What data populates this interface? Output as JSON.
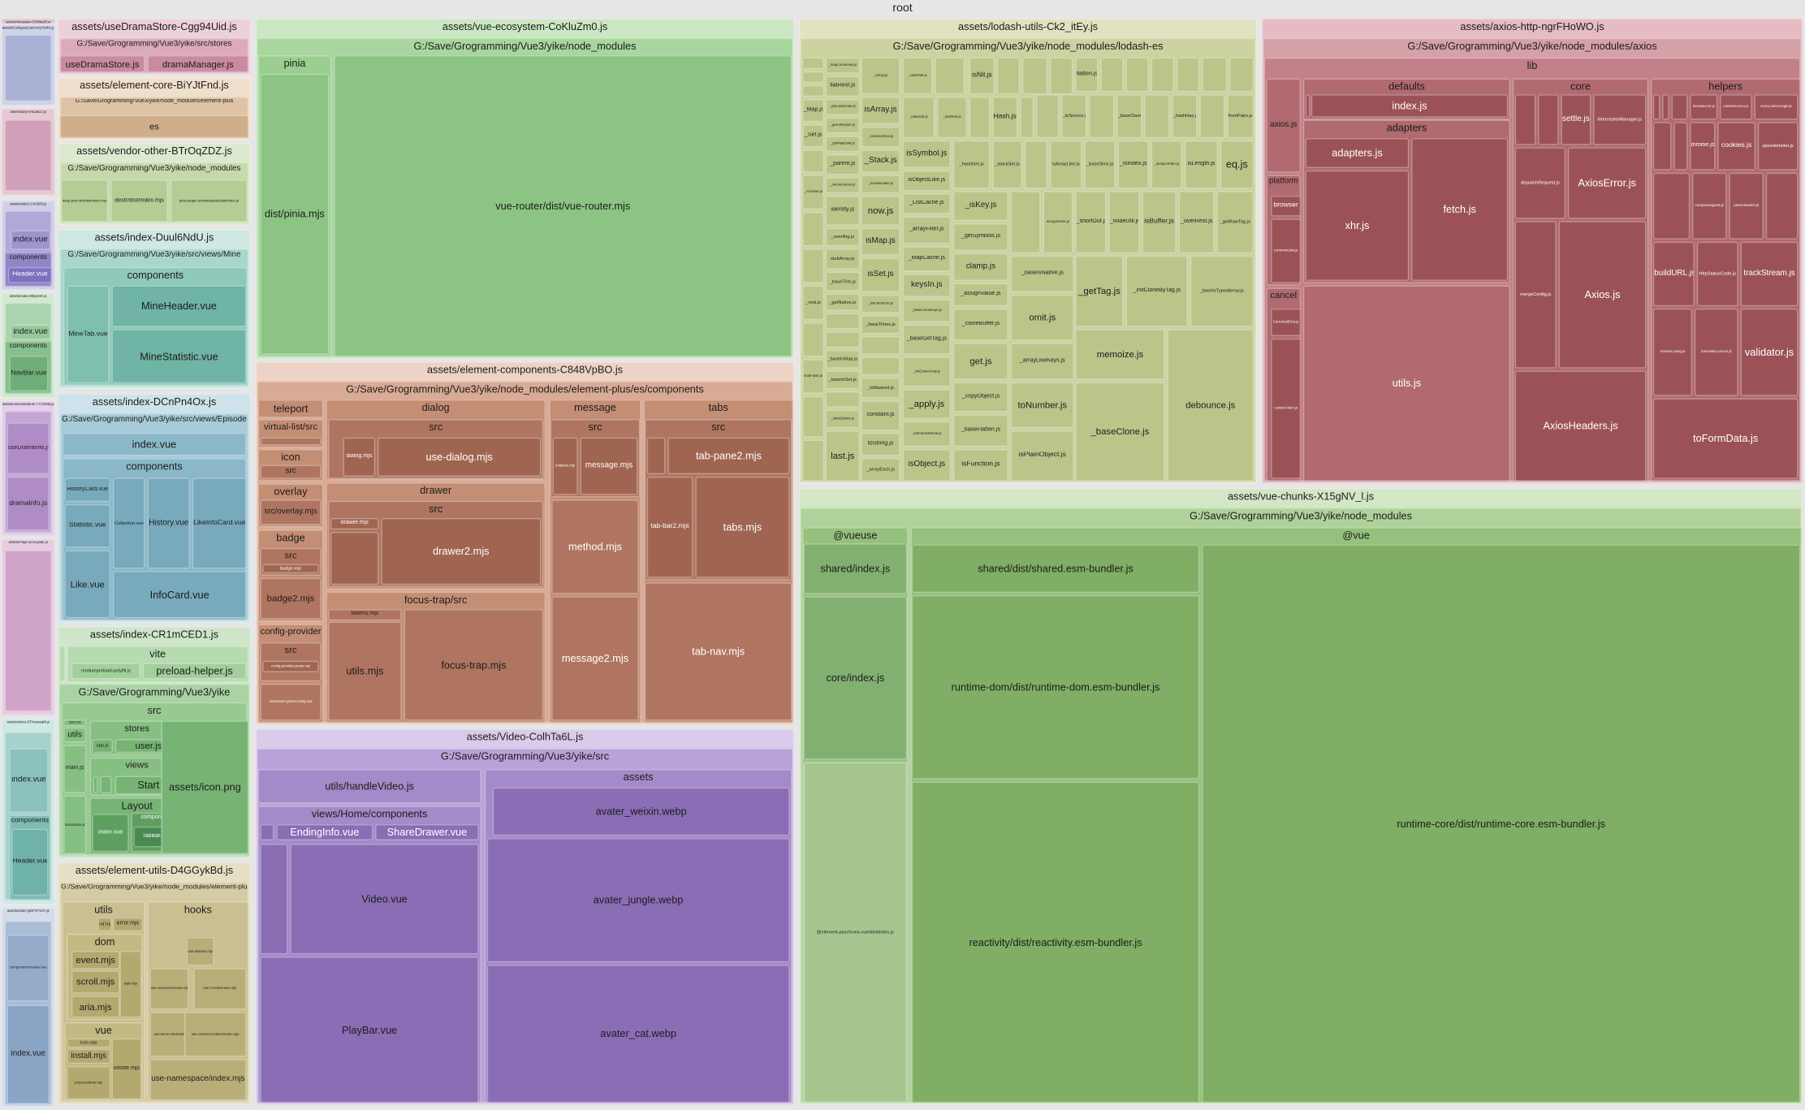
{
  "title": "root",
  "labels": {
    "lc_msg": "assets/message-C0jDfadQ.js",
    "lc_cat": "assets/CategoryCard-xKy3UfKe.js",
    "lc_play": "assets/play-er5od5JJ.js",
    "lc_c4": "assets/index-C4xJt93.js",
    "lc_c4_index": "index.vue",
    "lc_c4_comp": "components",
    "lc_c4_header": "Header.vue",
    "lc_b5": "assets/index-B5yvhrH.js",
    "lc_b5_index": "index.vue",
    "lc_b5_comp": "components",
    "lc_b5_navbar": "NavBar.vue",
    "lc_udi": "assets/useDramaInfo-TYCf9Nb.js",
    "lc_udi_use": "useDramaInfo.js",
    "lc_udi_info": "dramaInfo.js",
    "lc_page": "assets/Page-BADQaltE.js",
    "lc_dth": "assets/index-DThuesaqW.js",
    "lc_dth_index": "index.vue",
    "lc_dth_comp": "components",
    "lc_dth_header": "Header.vue",
    "lc_qdf": "assets/index-QDFXY1GY.js",
    "lc_qdf_ch": "components/Header.vue",
    "lc_qdf_index": "index.vue",
    "uds": "assets/useDramaStore-Cgg94Uid.js",
    "uds_path": "G:/Save/Grogramming/Vue3/yike/src/stores",
    "uds_store": "useDramaStore.js",
    "uds_mgr": "dramaManager.js",
    "ec": "assets/element-core-BiYJtFnd.js",
    "ec_path": "G:/Save/Grogramming/Vue3/yike/node_modules/element-plus",
    "ec_es": "es",
    "vo": "assets/vendor-other-BTrOqZDZ.js",
    "vo_path": "G:/Save/Grogramming/Vue3/yike/node_modules",
    "vo_deep": "deep-pick-omit/dist/index.mjs",
    "vo_destr": "destr/dist/index.mjs",
    "vo_pinia": "pinia-plugin-persistedstate/dist/index.js",
    "du": "assets/index-Duul6NdU.js",
    "du_path": "G:/Save/Grogramming/Vue3/yike/src/views/Mine",
    "du_comp": "components",
    "du_tab": "MineTab.vue",
    "du_header": "MineHeader.vue",
    "du_stat": "MineStatistic.vue",
    "dc": "assets/index-DCnPn4Ox.js",
    "dc_path": "G:/Save/Grogramming/Vue3/yike/src/views/Episode",
    "dc_index": "index.vue",
    "dc_comp": "components",
    "dc_hcard": "HistoryCard.vue",
    "dc_stat": "Statistic.vue",
    "dc_like": "Like.vue",
    "dc_coll": "Collection.vue",
    "dc_hist": "History.vue",
    "dc_likeinfo": "LikeInfoCard.vue",
    "dc_info": "InfoCard.vue",
    "cr": "assets/index-CR1mCED1.js",
    "cr_vite": "vite",
    "cr_mpp": "modulepreload-polyfill.js",
    "cr_ph": "preload-helper.js",
    "cr_path": "G:/Save/Grogramming/Vue3/yike",
    "cr_src": "src",
    "cr_app": "App.vue",
    "cr_utils": "utils",
    "cr_main": "main.js",
    "cr_mainidx": "main/index.js",
    "cr_stores": "stores",
    "cr_appjs": "app.js",
    "cr_user": "user.js",
    "cr_views": "views",
    "cr_start": "Start",
    "cr_layout": "Layout",
    "cr_lindex": "index.vue",
    "cr_lcomp": "components",
    "cr_tabbar": "TabBar.vue",
    "cr_icon": "assets/icon.png",
    "eu": "assets/element-utils-D4GGykBd.js",
    "eu_path": "G:/Save/Grogramming/Vue3/yike/node_modules/element-plus/es",
    "eu_utils": "utils",
    "eu_raf": "raf.mjs",
    "eu_error": "error.mjs",
    "eu_dom": "dom",
    "eu_event": "event.mjs",
    "eu_scroll": "scroll.mjs",
    "eu_aria": "aria.mjs",
    "eu_style": "style.mjs",
    "eu_vue": "vue",
    "eu_icon": "icon.mjs",
    "eu_install": "install.mjs",
    "eu_props": "props/runtime.mjs",
    "eu_vnode": "vnode.mjs",
    "eu_hooks": "hooks",
    "eu_useid": "use-id/index.mjs",
    "eu_uselock": "use-lockscreen/index.mjs",
    "eu_usez": "use-z-index/index.mjs",
    "eu_usefocus": "use-focus-returned/index.mjs",
    "eu_ordered": "use-ordered-children/index.mjs",
    "eu_ns": "use-namespace/index.mjs",
    "ve": "assets/vue-ecosystem-CoKluZm0.js",
    "ve_path": "G:/Save/Grogramming/Vue3/yike/node_modules",
    "ve_pinia": "pinia",
    "ve_piniamjs": "dist/pinia.mjs",
    "ve_router": "vue-router/dist/vue-router.mjs",
    "ecp": "assets/element-components-C848VpBO.js",
    "ecp_path": "G:/Save/Grogramming/Vue3/yike/node_modules/element-plus/es/components",
    "ecp_teleport": "teleport",
    "ecp_vlist": "virtual-list/src",
    "ecp_icon": "icon",
    "ecp_iconsrc": "src",
    "ecp_overlay": "overlay",
    "ecp_overlaymjs": "src/overlay.mjs",
    "ecp_badge": "badge",
    "ecp_badgesrc": "src",
    "ecp_badgemjs": "badge.mjs",
    "ecp_badge2": "badge2.mjs",
    "ecp_cp": "config-provider",
    "ecp_cpsrc": "src",
    "ecp_cpprops": "config-provider-props.mjs",
    "ecp_cphooks": "hooks/use-global-config.mjs",
    "ecp_dialog": "dialog",
    "ecp_dialogsrc": "src",
    "ecp_dialogmjs": "dialog.mjs",
    "ecp_usedialog": "use-dialog.mjs",
    "ecp_drawer": "drawer",
    "ecp_drawersrc": "src",
    "ecp_drawermjs": "drawer.mjs",
    "ecp_drawer2": "drawer2.mjs",
    "ecp_ft": "focus-trap/src",
    "ecp_fttokens": "tokens.mjs",
    "ecp_ftutils": "utils.mjs",
    "ecp_ftmjs": "focus-trap.mjs",
    "ecp_msg": "message",
    "ecp_msgsrc": "src",
    "ecp_instance": "instance.mjs",
    "ecp_msgmjs": "message.mjs",
    "ecp_method": "method.mjs",
    "ecp_msg2": "message2.mjs",
    "ecp_tabs": "tabs",
    "ecp_tabssrc": "src",
    "ecp_tabpane": "tab-pane2.mjs",
    "ecp_tabbar": "tab-bar2.mjs",
    "ecp_tabsmjs": "tabs.mjs",
    "ecp_tabnav": "tab-nav.mjs",
    "vd": "assets/Video-ColhTa6L.js",
    "vd_path": "G:/Save/Grogramming/Vue3/yike/src",
    "vd_handle": "utils/handleVideo.js",
    "vd_comp": "views/Home/components",
    "vd_ending": "EndingInfo.vue",
    "vd_share": "ShareDrawer.vue",
    "vd_video": "Video.vue",
    "vd_playbar": "PlayBar.vue",
    "vd_assets": "assets",
    "vd_weixin": "avater_weixin.webp",
    "vd_jungle": "avater_jungle.webp",
    "vd_cat": "avater_cat.webp",
    "lo": "assets/lodash-utils-Ck2_itEy.js",
    "lo_path": "G:/Save/Grogramming/Vue3/yike/node_modules/lodash-es",
    "lo_map": "_Map.js",
    "lo_set": "_Set.js",
    "lo_promise": "_Promise.js",
    "lo_root": "_root.js",
    "lo_stubfalse": "stubFalse.js",
    "lo_mch": "_mapCacheHas.js",
    "lo_flatrest": "flatRest.js",
    "lo_lch": "_listCacheHas.js",
    "lo_gaki": "_getAllKeysIn.js",
    "lo_gmd": "_getMapData.js",
    "lo_parent": "_parent.js",
    "lo_lcg": "_listCacheGet.js",
    "lo_identity": "identity.js",
    "lo_overarg": "_overArg.js",
    "lo_stubarray": "stubArray.js",
    "lo_basetrim": "_baseTrim.js",
    "lo_getnative": "_getNative.js",
    "lo_baseismap": "_baseIsMap.js",
    "lo_baseisset": "_baseIsSet.js",
    "lo_stackdelete": "_stackDelete.js",
    "lo_last": "last.js",
    "lo_tokey": "_toKey.js",
    "lo_isarray": "isArray.js",
    "lo_clonesym": "_cloneSymbol.js",
    "lo_stack": "_Stack.js",
    "lo_isflat": "_isFlattenable.js",
    "lo_now": "now.js",
    "lo_ismap": "isMap.js",
    "lo_isset": "isSet.js",
    "lo_lcs": "_listCacheSet.js",
    "lo_basetimes": "_baseTimes.js",
    "lo_ismasked": "_isMasked.js",
    "lo_constant": "constant.js",
    "lo_tostring": "toString.js",
    "lo_arrayeach": "_arrayEach.js",
    "lo_castpath": "_castPath.js",
    "lo_baseget": "_baseGet.js",
    "lo_issymbol": "isSymbol.js",
    "lo_isobjlike": "isObjectLike.js",
    "lo_listcache": "_ListCache.js",
    "lo_arrayfilter": "_arrayFilter.js",
    "lo_mapcache": "_MapCache.js",
    "lo_keysin": "keysIn.js",
    "lo_bgak": "_baseGetAllKeys.js",
    "lo_basegettag": "_baseGetTag.js",
    "lo_ica": "_initCloneArray.js",
    "lo_apply": "_apply.js",
    "lo_lcd": "_listCacheDelete.js",
    "lo_isobject": "isObject.js",
    "lo_isnil": "isNil.js",
    "lo_hashset": "_hashSet.js",
    "lo_hash": "Hash.js",
    "lo_hashget": "_hashGet.js",
    "lo_stackset": "_stackSet.js",
    "lo_iskey": "_isKey.js",
    "lo_getsymbols": "_getSymbols.js",
    "lo_clamp": "clamp.js",
    "lo_assignvalue": "_assignValue.js",
    "lo_clonebuffer": "_cloneBuffer.js",
    "lo_get": "get.js",
    "lo_copyobject": "_copyObject.js",
    "lo_baseflatten": "_baseFlatten.js",
    "lo_isfunction": "isFunction.js",
    "lo_baseisnative": "_baseIsNative.js",
    "lo_omit": "omit.js",
    "lo_arraylikekeys": "_arrayLikeKeys.js",
    "lo_tonumber": "toNumber.js",
    "lo_isplain": "isPlainObject.js",
    "lo_flatten": "flatten.js",
    "lo_tosource": "_toSource.js",
    "lo_baseclamp": "_baseClamp.js",
    "lo_hashhas": "_hashHas.js",
    "lo_frompairs": "fromPairs.js",
    "lo_isarraylike": "isArrayLike.js",
    "lo_baseslice": "_baseSlice.js",
    "lo_isindex": "_isIndex.js",
    "lo_stringtopath": "_stringToPath.js",
    "lo_islength": "isLength.js",
    "lo_eq": "eq.js",
    "lo_isarguments": "isArguments.js",
    "lo_shortout": "_shortOut.js",
    "lo_nodeutil": "_nodeUtil.js",
    "lo_isbuffer": "isBuffer.js",
    "lo_overrest": "_overRest.js",
    "lo_getrawtag": "_getRawTag.js",
    "lo_gettag": "_getTag.js",
    "lo_icbt": "_initCloneByTag.js",
    "lo_bita": "_baseIsTypedArray.js",
    "lo_memoize": "memoize.js",
    "lo_baseclone": "_baseClone.js",
    "lo_debounce": "debounce.js",
    "ax": "assets/axios-http-ngrFHoWO.js",
    "ax_path": "G:/Save/Grogramming/Vue3/yike/node_modules/axios",
    "ax_lib": "lib",
    "ax_axios": "axios.js",
    "ax_platform": "platform",
    "ax_browser": "browser",
    "ax_common": "common/utils.js",
    "ax_cancel": "cancel",
    "ax_canceled": "CanceledError.js",
    "ax_canceltoken": "CancelToken.js",
    "ax_defaults": "defaults",
    "ax_dindex": "index.js",
    "ax_adapters": "adapters",
    "ax_adaptersjs": "adapters.js",
    "ax_xhr": "xhr.js",
    "ax_fetch": "fetch.js",
    "ax_utils": "utils.js",
    "ax_core": "core",
    "ax_settle": "settle.js",
    "ax_interceptor": "InterceptorManager.js",
    "ax_dispatch": "dispatchRequest.js",
    "ax_axioserror": "AxiosError.js",
    "ax_merge": "mergeConfig.js",
    "ax_axiosjs": "Axios.js",
    "ax_headers": "AxiosHeaders.js",
    "ax_helpers": "helpers",
    "ax_isaxioserror": "isAxiosError.js",
    "ax_combine": "combineURLs.js",
    "ax_sameorigin": "isURLSameOrigin.js",
    "ax_throttle": "throttle.js",
    "ax_cookies": "cookies.js",
    "ax_speedometer": "speedometer.js",
    "ax_compose": "composeSignals.js",
    "ax_parseheaders": "parseHeaders.js",
    "ax_buildurl": "buildURL.js",
    "ax_status": "HttpStatusCode.js",
    "ax_trackstream": "trackStream.js",
    "ax_resolve": "resolveConfig.js",
    "ax_fdtj": "formDataToJSON.js",
    "ax_validator": "validator.js",
    "ax_toformdata": "toFormData.js",
    "vc": "assets/vue-chunks-X15gNV_l.js",
    "vc_path": "G:/Save/Grogramming/Vue3/yike/node_modules",
    "vc_vueuse": "@vueuse",
    "vc_shared": "shared/index.js",
    "vc_core": "core/index.js",
    "vc_icons": "@element-plus/icons-vue/dist/index.js",
    "vc_vue": "@vue",
    "vc_sharedesm": "shared/dist/shared.esm-bundler.js",
    "vc_rdom": "runtime-dom/dist/runtime-dom.esm-bundler.js",
    "vc_react": "reactivity/dist/reactivity.esm-bundler.js",
    "vc_rcore": "runtime-core/dist/runtime-core.esm-bundler.js"
  }
}
